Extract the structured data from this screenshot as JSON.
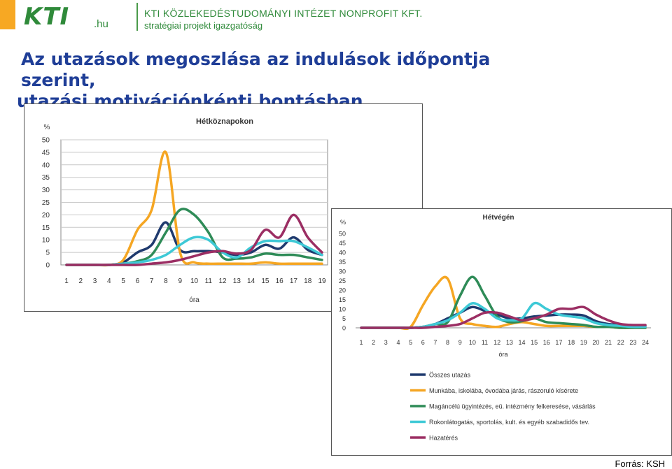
{
  "header": {
    "logo_text": "KTI",
    "logo_suffix": ".hu",
    "org_line1": "KTI KÖZLEKEDÉSTUDOMÁNYI INTÉZET NONPROFIT KFT.",
    "org_line2": "stratégiai projekt igazgatóság"
  },
  "title": {
    "line1": "Az utazások megoszlása az indulások időpontja szerint,",
    "line2": "utazási motivációnkénti bontásban"
  },
  "source": "Forrás: KSH",
  "colors": {
    "total": "#1f3a6e",
    "work": "#f5a623",
    "errands": "#2e8b57",
    "leisure": "#3ec9d6",
    "home": "#9b2e63",
    "accent_orange": "#f7a823",
    "brand_green": "#2f8a3a",
    "title_blue": "#1f3e97"
  },
  "chart_data": [
    {
      "type": "line",
      "title": "Hétköznapokon",
      "xlabel": "óra",
      "ylabel": "%",
      "ylim": [
        0,
        50
      ],
      "yticks": [
        0,
        5,
        10,
        15,
        20,
        25,
        30,
        35,
        40,
        45,
        50
      ],
      "grid": true,
      "x": [
        1,
        2,
        3,
        4,
        5,
        6,
        7,
        8,
        9,
        10,
        11,
        12,
        13,
        14,
        15,
        16,
        17,
        18,
        19
      ],
      "x_labels": [
        "1",
        "2",
        "3",
        "4",
        "5",
        "6",
        "7",
        "8",
        "9",
        "10",
        "11",
        "12",
        "13",
        "14",
        "15",
        "16",
        "17",
        "18",
        "19"
      ],
      "series": [
        {
          "key": "total",
          "values": [
            0,
            0,
            0,
            0,
            1,
            5,
            8,
            17,
            6,
            5.5,
            5.5,
            5,
            4,
            5,
            8,
            6.5,
            11,
            6,
            4
          ]
        },
        {
          "key": "work",
          "values": [
            0,
            0,
            0,
            0,
            2,
            14,
            22,
            45,
            5,
            1,
            0.5,
            0.5,
            0.5,
            0.5,
            1,
            0.5,
            0.5,
            0.5,
            0.5
          ]
        },
        {
          "key": "errands",
          "values": [
            0,
            0,
            0,
            0,
            0.5,
            1.5,
            4,
            13,
            22,
            20,
            13,
            3,
            2.5,
            3,
            4.5,
            4,
            4,
            3,
            2
          ]
        },
        {
          "key": "leisure",
          "values": [
            0,
            0,
            0,
            0,
            0.5,
            1,
            2,
            4,
            8,
            11,
            10,
            5,
            3,
            7,
            9.5,
            9.5,
            9.5,
            7,
            4
          ]
        },
        {
          "key": "home",
          "values": [
            0,
            0,
            0,
            0,
            0,
            0,
            0.5,
            1,
            2,
            3.5,
            5,
            5.5,
            4.5,
            6,
            14,
            11,
            20,
            11,
            5
          ]
        }
      ]
    },
    {
      "type": "line",
      "title": "Hétvégén",
      "xlabel": "óra",
      "ylabel": "%",
      "ylim": [
        0,
        50
      ],
      "yticks": [
        0,
        5,
        10,
        15,
        20,
        25,
        30,
        35,
        40,
        45,
        50
      ],
      "grid": false,
      "x": [
        1,
        2,
        3,
        4,
        5,
        6,
        7,
        8,
        9,
        10,
        11,
        12,
        13,
        14,
        15,
        16,
        17,
        18,
        19,
        20,
        21,
        22,
        23,
        24
      ],
      "x_labels": [
        "1",
        "2",
        "3",
        "4",
        "5",
        "6",
        "7",
        "8",
        "9",
        "10",
        "11",
        "12",
        "13",
        "14",
        "15",
        "16",
        "17",
        "18",
        "19",
        "20",
        "21",
        "22",
        "23",
        "24"
      ],
      "series": [
        {
          "key": "total",
          "values": [
            0,
            0,
            0,
            0,
            0,
            0.5,
            2,
            5,
            8,
            11,
            9,
            7,
            5,
            5,
            6,
            6.5,
            7,
            7,
            6.5,
            3.5,
            2,
            1.5,
            1,
            1
          ]
        },
        {
          "key": "work",
          "values": [
            0,
            0,
            0,
            0,
            0.5,
            12,
            22,
            26,
            5,
            2,
            1,
            0.5,
            2,
            3,
            2,
            1,
            1,
            1,
            1,
            0.5,
            0.5,
            0,
            0,
            0
          ]
        },
        {
          "key": "errands",
          "values": [
            0,
            0,
            0,
            0,
            0,
            0.5,
            2,
            3,
            17,
            27,
            17,
            6,
            3,
            3.5,
            5,
            3,
            2.5,
            2,
            1.5,
            0.5,
            0.5,
            0,
            0,
            0
          ]
        },
        {
          "key": "leisure",
          "values": [
            0,
            0,
            0,
            0,
            0,
            0.5,
            2,
            4,
            8,
            13,
            10,
            5,
            4,
            5,
            13,
            10,
            7,
            6,
            5,
            2.5,
            1.5,
            1,
            0.5,
            0.5
          ]
        },
        {
          "key": "home",
          "values": [
            0,
            0,
            0,
            0,
            0,
            0,
            0.5,
            1,
            2,
            5,
            8,
            8,
            6,
            4,
            5,
            7,
            10,
            10,
            11,
            7,
            4,
            2,
            1.5,
            1.5
          ]
        }
      ]
    }
  ],
  "legend": [
    {
      "key": "total",
      "label": "Összes utazás"
    },
    {
      "key": "work",
      "label": "Munkába, iskolába, óvodába járás, rászoruló kísérete"
    },
    {
      "key": "errands",
      "label": "Magáncélú ügyintézés, eü. intézmény felkeresése, vásárlás"
    },
    {
      "key": "leisure",
      "label": "Rokonlátogatás, sportolás, kult. és egyéb szabadidős tev."
    },
    {
      "key": "home",
      "label": "Hazatérés"
    }
  ]
}
